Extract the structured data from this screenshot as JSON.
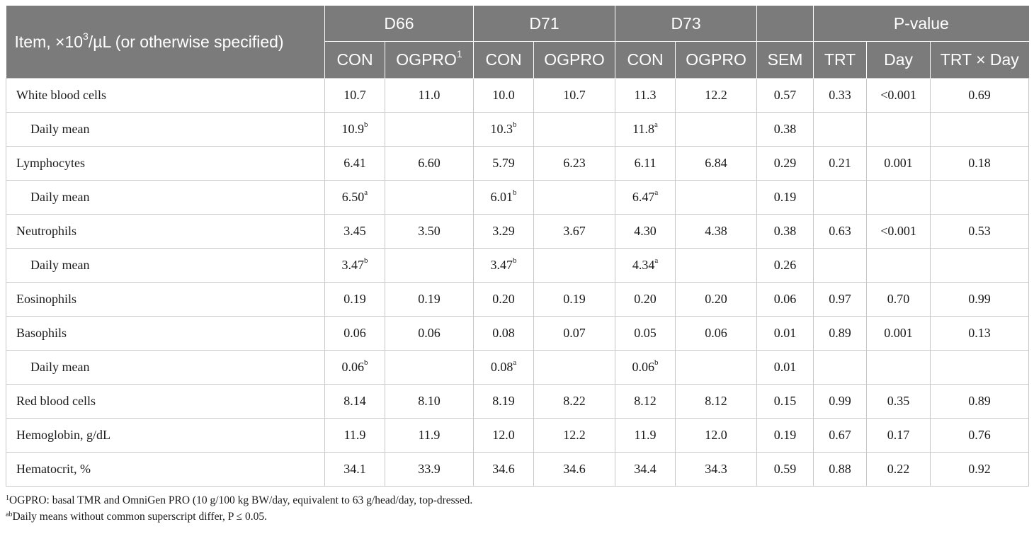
{
  "header": {
    "item_prefix": "Item, ×10",
    "item_sup": "3",
    "item_suffix": "/µL (or otherwise specified)",
    "groups": [
      "D66",
      "D71",
      "D73",
      "",
      "P-value"
    ],
    "sub": {
      "d66_con": "CON",
      "d66_ogpro": "OGPRO",
      "d66_ogpro_sup": "1",
      "d71_con": "CON",
      "d71_ogpro": "OGPRO",
      "d73_con": "CON",
      "d73_ogpro": "OGPRO",
      "sem": "SEM",
      "trt": "TRT",
      "day": "Day",
      "trt_day": "TRT × Day"
    }
  },
  "rows": [
    {
      "label": "White blood cells",
      "sub": false,
      "cells": [
        {
          "v": "10.7"
        },
        {
          "v": "11.0"
        },
        {
          "v": "10.0"
        },
        {
          "v": "10.7"
        },
        {
          "v": "11.3"
        },
        {
          "v": "12.2"
        },
        {
          "v": "0.57"
        },
        {
          "v": "0.33"
        },
        {
          "v": "<0.001"
        },
        {
          "v": "0.69"
        }
      ]
    },
    {
      "label": "Daily mean",
      "sub": true,
      "cells": [
        {
          "v": "10.9",
          "s": "b"
        },
        {
          "v": ""
        },
        {
          "v": "10.3",
          "s": "b"
        },
        {
          "v": ""
        },
        {
          "v": "11.8",
          "s": "a"
        },
        {
          "v": ""
        },
        {
          "v": "0.38"
        },
        {
          "v": ""
        },
        {
          "v": ""
        },
        {
          "v": ""
        }
      ]
    },
    {
      "label": "Lymphocytes",
      "sub": false,
      "cells": [
        {
          "v": "6.41"
        },
        {
          "v": "6.60"
        },
        {
          "v": "5.79"
        },
        {
          "v": "6.23"
        },
        {
          "v": "6.11"
        },
        {
          "v": "6.84"
        },
        {
          "v": "0.29"
        },
        {
          "v": "0.21"
        },
        {
          "v": "0.001"
        },
        {
          "v": "0.18"
        }
      ]
    },
    {
      "label": "Daily mean",
      "sub": true,
      "cells": [
        {
          "v": "6.50",
          "s": "a"
        },
        {
          "v": ""
        },
        {
          "v": "6.01",
          "s": "b"
        },
        {
          "v": ""
        },
        {
          "v": "6.47",
          "s": "a"
        },
        {
          "v": ""
        },
        {
          "v": "0.19"
        },
        {
          "v": ""
        },
        {
          "v": ""
        },
        {
          "v": ""
        }
      ]
    },
    {
      "label": "Neutrophils",
      "sub": false,
      "cells": [
        {
          "v": "3.45"
        },
        {
          "v": "3.50"
        },
        {
          "v": "3.29"
        },
        {
          "v": "3.67"
        },
        {
          "v": "4.30"
        },
        {
          "v": "4.38"
        },
        {
          "v": "0.38"
        },
        {
          "v": "0.63"
        },
        {
          "v": "<0.001"
        },
        {
          "v": "0.53"
        }
      ]
    },
    {
      "label": "Daily mean",
      "sub": true,
      "cells": [
        {
          "v": "3.47",
          "s": "b"
        },
        {
          "v": ""
        },
        {
          "v": "3.47",
          "s": "b"
        },
        {
          "v": ""
        },
        {
          "v": "4.34",
          "s": "a"
        },
        {
          "v": ""
        },
        {
          "v": "0.26"
        },
        {
          "v": ""
        },
        {
          "v": ""
        },
        {
          "v": ""
        }
      ]
    },
    {
      "label": "Eosinophils",
      "sub": false,
      "cells": [
        {
          "v": "0.19"
        },
        {
          "v": "0.19"
        },
        {
          "v": "0.20"
        },
        {
          "v": "0.19"
        },
        {
          "v": "0.20"
        },
        {
          "v": "0.20"
        },
        {
          "v": "0.06"
        },
        {
          "v": "0.97"
        },
        {
          "v": "0.70"
        },
        {
          "v": "0.99"
        }
      ]
    },
    {
      "label": "Basophils",
      "sub": false,
      "cells": [
        {
          "v": "0.06"
        },
        {
          "v": "0.06"
        },
        {
          "v": "0.08"
        },
        {
          "v": "0.07"
        },
        {
          "v": "0.05"
        },
        {
          "v": "0.06"
        },
        {
          "v": "0.01"
        },
        {
          "v": "0.89"
        },
        {
          "v": "0.001"
        },
        {
          "v": "0.13"
        }
      ]
    },
    {
      "label": "Daily mean",
      "sub": true,
      "cells": [
        {
          "v": "0.06",
          "s": "b"
        },
        {
          "v": ""
        },
        {
          "v": "0.08",
          "s": "a"
        },
        {
          "v": ""
        },
        {
          "v": "0.06",
          "s": "b"
        },
        {
          "v": ""
        },
        {
          "v": "0.01"
        },
        {
          "v": ""
        },
        {
          "v": ""
        },
        {
          "v": ""
        }
      ]
    },
    {
      "label": "Red blood cells",
      "sub": false,
      "cells": [
        {
          "v": "8.14"
        },
        {
          "v": "8.10"
        },
        {
          "v": "8.19"
        },
        {
          "v": "8.22"
        },
        {
          "v": "8.12"
        },
        {
          "v": "8.12"
        },
        {
          "v": "0.15"
        },
        {
          "v": "0.99"
        },
        {
          "v": "0.35"
        },
        {
          "v": "0.89"
        }
      ]
    },
    {
      "label": "Hemoglobin, g/dL",
      "sub": false,
      "cells": [
        {
          "v": "11.9"
        },
        {
          "v": "11.9"
        },
        {
          "v": "12.0"
        },
        {
          "v": "12.2"
        },
        {
          "v": "11.9"
        },
        {
          "v": "12.0"
        },
        {
          "v": "0.19"
        },
        {
          "v": "0.67"
        },
        {
          "v": "0.17"
        },
        {
          "v": "0.76"
        }
      ]
    },
    {
      "label": "Hematocrit, %",
      "sub": false,
      "cells": [
        {
          "v": "34.1"
        },
        {
          "v": "33.9"
        },
        {
          "v": "34.6"
        },
        {
          "v": "34.6"
        },
        {
          "v": "34.4"
        },
        {
          "v": "34.3"
        },
        {
          "v": "0.59"
        },
        {
          "v": "0.88"
        },
        {
          "v": "0.22"
        },
        {
          "v": "0.92"
        }
      ]
    }
  ],
  "footnotes": [
    {
      "sup": "1",
      "text": "OGPRO: basal TMR and OmniGen PRO (10 g/100 kg BW/day, equivalent to 63 g/head/day, top-dressed."
    },
    {
      "sup": "ab",
      "text": "Daily means without common superscript differ, P ≤ 0.05."
    }
  ]
}
